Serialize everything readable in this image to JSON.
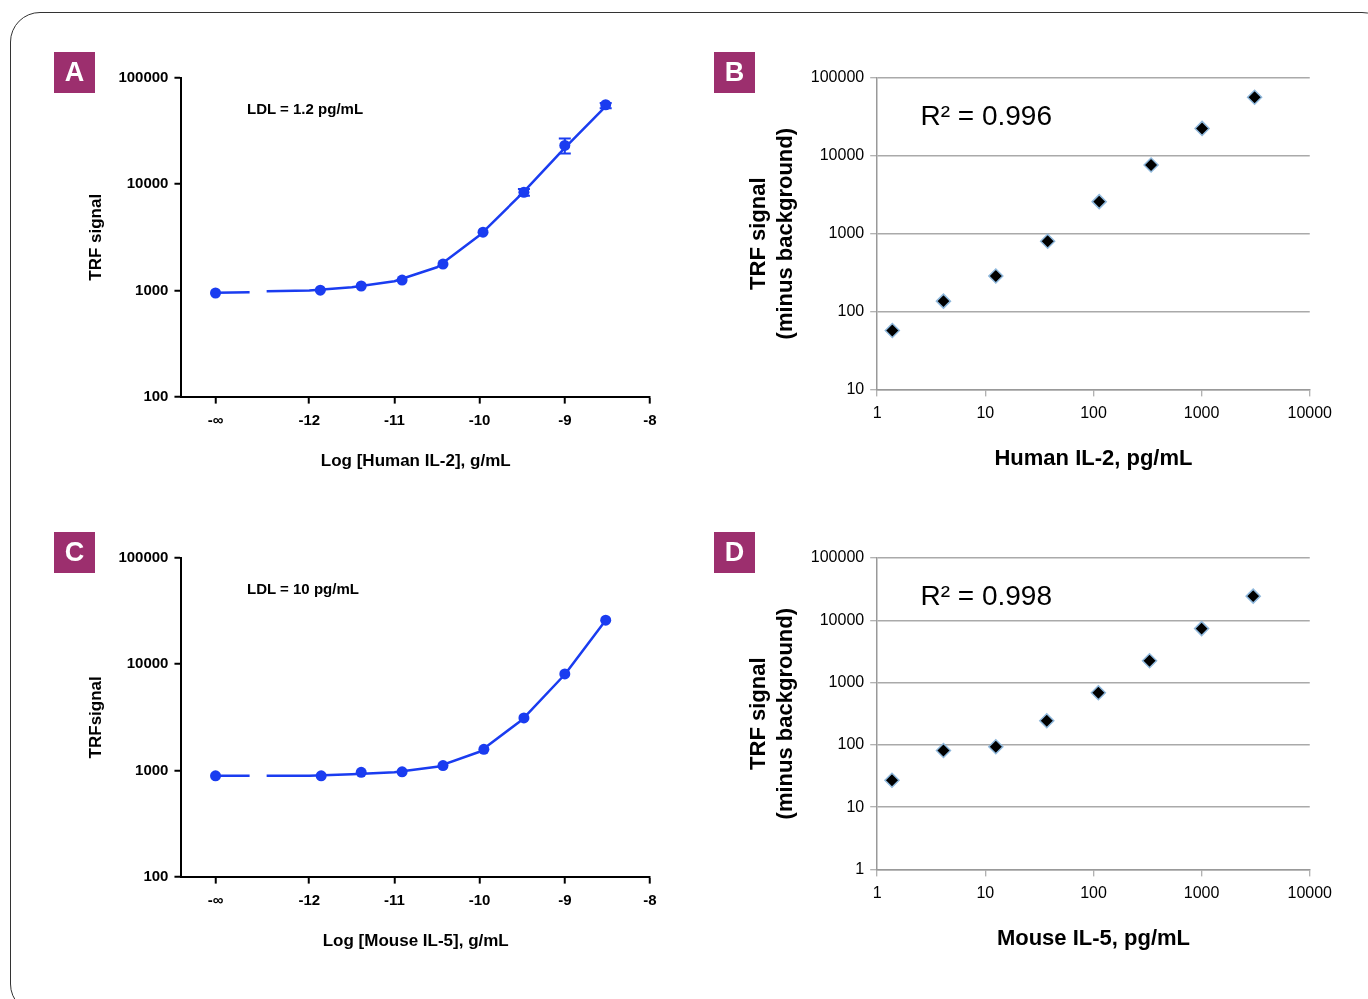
{
  "chart_data": [
    {
      "type": "scatter",
      "title": "A",
      "xlabel": "Log [Human IL-2], g/mL",
      "ylabel": "TRF signal",
      "annotations": [
        "LDL = 1.2 pg/mL"
      ],
      "xlim": [
        -13.5,
        -8
      ],
      "xticks": [
        {
          "value": -13.1,
          "label": "-∞"
        },
        -12,
        -11,
        -10,
        -9,
        -8
      ],
      "ylim": [
        100,
        100000
      ],
      "yticks": [
        100,
        1000,
        10000,
        100000
      ],
      "log": "y",
      "series": [
        {
          "type": "scatter",
          "marker": "circle",
          "color": "#1a3cf0",
          "x": [
            -13.1,
            -11.87,
            -11.39,
            -10.91,
            -10.43,
            -9.96,
            -9.48,
            -9.0,
            -8.52
          ],
          "values": [
            945,
            1005,
            1100,
            1250,
            1770,
            3530,
            8400,
            23200,
            56000
          ],
          "errors": [
            null,
            null,
            null,
            null,
            null,
            null,
            [
              7800,
              9000
            ],
            [
              19500,
              27000
            ],
            [
              52000,
              58000
            ]
          ]
        },
        {
          "type": "line",
          "marker": "none",
          "color": "#1a3cf0",
          "x": [
            -13.1,
            -12.7,
            -12.6,
            -12.5,
            -12,
            -11.5,
            -11,
            -10.5,
            -10,
            -9.5,
            -9,
            -8.52
          ],
          "values": [
            950,
            960,
            null,
            980,
            1000,
            1070,
            1220,
            1650,
            3300,
            8200,
            22000,
            54000
          ]
        }
      ]
    },
    {
      "type": "scatter",
      "title": "B",
      "xlabel": "Human IL-2, pg/mL",
      "ylabel": "TRF signal\n(minus background)",
      "annotations": [
        "R² = 0.996"
      ],
      "xlim": [
        1,
        10000
      ],
      "xticks": [
        1,
        10,
        100,
        1000,
        10000
      ],
      "ylim": [
        10,
        100000
      ],
      "yticks": [
        10,
        100,
        1000,
        10000,
        100000
      ],
      "log": "xy",
      "grid": "y",
      "marker": "diamond",
      "series": [
        {
          "color": "#000000",
          "x": [
            1.38,
            4.1,
            12.5,
            37.7,
            113,
            341,
            1010,
            3090
          ],
          "values": [
            57,
            136,
            286,
            800,
            2580,
            7620,
            22500,
            56500
          ]
        }
      ]
    },
    {
      "type": "scatter",
      "title": "C",
      "xlabel": "Log [Mouse IL-5], g/mL",
      "ylabel": "TRFsignal",
      "annotations": [
        "LDL = 10 pg/mL"
      ],
      "xlim": [
        -13.5,
        -8
      ],
      "xticks": [
        {
          "value": -13.1,
          "label": "-∞"
        },
        -12,
        -11,
        -10,
        -9,
        -8
      ],
      "ylim": [
        100,
        100000
      ],
      "yticks": [
        100,
        1000,
        10000,
        100000
      ],
      "log": "y",
      "series": [
        {
          "type": "scatter",
          "marker": "circle",
          "color": "#1a3cf0",
          "x": [
            -13.1,
            -11.86,
            -11.39,
            -10.91,
            -10.43,
            -9.95,
            -9.48,
            -9.0,
            -8.52
          ],
          "values": [
            890,
            890,
            960,
            970,
            1110,
            1580,
            3120,
            8100,
            26000
          ]
        },
        {
          "type": "line",
          "marker": "none",
          "color": "#1a3cf0",
          "x": [
            -13.1,
            -12.7,
            -12.6,
            -12.5,
            -12,
            -11.5,
            -11,
            -10.5,
            -10,
            -9.5,
            -9,
            -8.52
          ],
          "values": [
            890,
            890,
            null,
            890,
            890,
            920,
            960,
            1080,
            1500,
            3000,
            8000,
            26000
          ]
        }
      ]
    },
    {
      "type": "scatter",
      "title": "D",
      "xlabel": "Mouse IL-5, pg/mL",
      "ylabel": "TRF signal\n(minus background)",
      "annotations": [
        "R² = 0.998"
      ],
      "xlim": [
        1,
        10000
      ],
      "xticks": [
        1,
        10,
        100,
        1000,
        10000
      ],
      "ylim": [
        1,
        100000
      ],
      "yticks": [
        1,
        10,
        100,
        1000,
        10000,
        100000
      ],
      "log": "xy",
      "grid": "y",
      "marker": "diamond",
      "series": [
        {
          "color": "#000000",
          "x": [
            1.37,
            4.1,
            12.5,
            37,
            111,
            330,
            1000,
            3000
          ],
          "values": [
            27,
            81,
            93,
            244,
            685,
            2240,
            7350,
            24400
          ]
        }
      ]
    }
  ]
}
